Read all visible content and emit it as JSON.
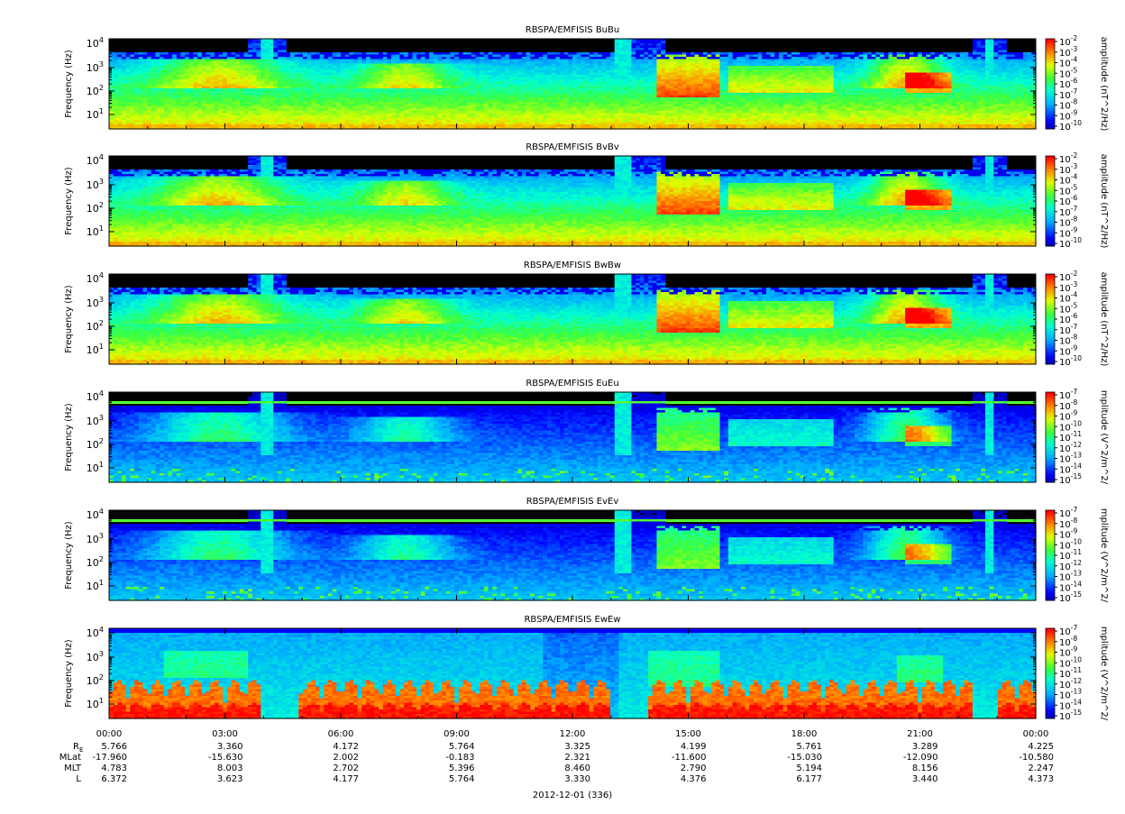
{
  "chart_data": {
    "type": "heatmap",
    "colormap": "rainbow (blue-cyan-green-yellow-red), black = below range",
    "date_label": "2012-12-01 (336)",
    "x_ticks": [
      "00:00",
      "03:00",
      "06:00",
      "09:00",
      "12:00",
      "15:00",
      "18:00",
      "21:00",
      "00:00"
    ],
    "y_axis_label": "Frequency (Hz)",
    "y_scale": "log",
    "y_ticks": [
      "10^1",
      "10^2",
      "10^3",
      "10^4"
    ],
    "panels": [
      {
        "title": "RBSPA/EMFISIS  BuBu",
        "zlabel": "amplitude (nT^2/Hz)",
        "z_ticks": [
          "10^-2",
          "10^-3",
          "10^-4",
          "10^-5",
          "10^-6",
          "10^-7",
          "10^-8",
          "10^-9",
          "10^-10"
        ],
        "kind": "B"
      },
      {
        "title": "RBSPA/EMFISIS  BvBv",
        "zlabel": "amplitude (nT^2/Hz)",
        "z_ticks": [
          "10^-2",
          "10^-3",
          "10^-4",
          "10^-5",
          "10^-6",
          "10^-7",
          "10^-8",
          "10^-9",
          "10^-10"
        ],
        "kind": "B"
      },
      {
        "title": "RBSPA/EMFISIS  BwBw",
        "zlabel": "amplitude (nT^2/Hz)",
        "z_ticks": [
          "10^-2",
          "10^-3",
          "10^-4",
          "10^-5",
          "10^-6",
          "10^-7",
          "10^-8",
          "10^-9",
          "10^-10"
        ],
        "kind": "B"
      },
      {
        "title": "RBSPA/EMFISIS  EuEu",
        "zlabel": "mplitude (V^2/m^2/",
        "z_ticks": [
          "10^-7",
          "10^-8",
          "10^-9",
          "10^-10",
          "10^-11",
          "10^-12",
          "10^-13",
          "10^-14",
          "10^-15"
        ],
        "kind": "E"
      },
      {
        "title": "RBSPA/EMFISIS  EvEv",
        "zlabel": "mplitude (V^2/m^2/",
        "z_ticks": [
          "10^-7",
          "10^-8",
          "10^-9",
          "10^-10",
          "10^-11",
          "10^-12",
          "10^-13",
          "10^-14",
          "10^-15"
        ],
        "kind": "E"
      },
      {
        "title": "RBSPA/EMFISIS  EwEw",
        "zlabel": "mplitude (V^2/m^2/",
        "z_ticks": [
          "10^-7",
          "10^-8",
          "10^-9",
          "10^-10",
          "10^-11",
          "10^-12",
          "10^-13",
          "10^-14",
          "10^-15"
        ],
        "kind": "Ew"
      }
    ],
    "ephemeris": [
      {
        "label": "RE",
        "values": [
          "5.766",
          "3.360",
          "4.172",
          "5.764",
          "3.325",
          "4.199",
          "5.761",
          "3.289",
          "4.225"
        ]
      },
      {
        "label": "MLat",
        "values": [
          "-17.960",
          "-15.630",
          "2.002",
          "-0.183",
          "2.321",
          "-11.600",
          "-15.030",
          "-12.090",
          "-10.580"
        ]
      },
      {
        "label": "MLT",
        "values": [
          "4.783",
          "8.003",
          "2.702",
          "5.396",
          "8.460",
          "2.790",
          "5.194",
          "8.156",
          "2.247"
        ]
      },
      {
        "label": "L",
        "values": [
          "6.372",
          "3.623",
          "4.177",
          "5.764",
          "3.330",
          "4.376",
          "6.177",
          "3.440",
          "4.373"
        ]
      }
    ]
  }
}
